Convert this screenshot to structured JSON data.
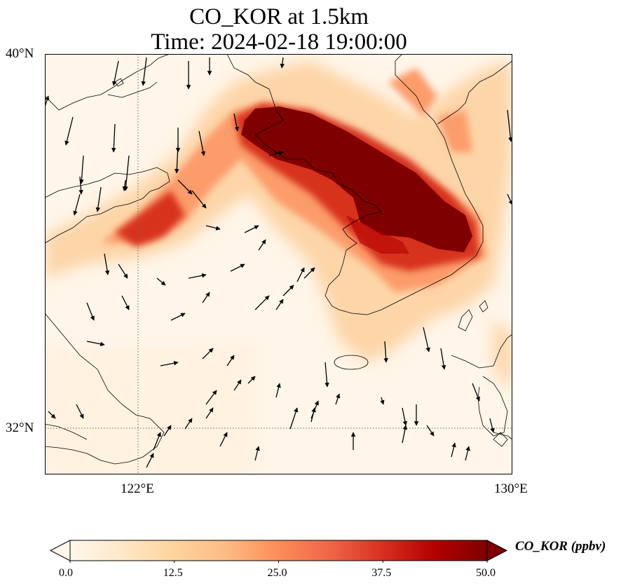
{
  "title": {
    "line1": "CO_KOR at 1.5km",
    "line2": "Time: 2024-02-18 19:00:00"
  },
  "map": {
    "variable": "CO_KOR",
    "height": "1.5km",
    "time": "2024-02-18 19:00:00",
    "projection": "PlateCarree",
    "extent": {
      "lon_min": 120.6,
      "lon_max": 130.0,
      "lat_min": 31.0,
      "lat_max": 40.0
    },
    "gridlines": {
      "style": "dotted",
      "lon": [
        122
      ],
      "lat": [
        32
      ]
    },
    "lat_labels": [
      "40°N",
      "32°N"
    ],
    "lon_labels": [
      "122°E",
      "130°E"
    ],
    "field_colormap": "OrRd",
    "wind_vectors": true
  },
  "colorbar": {
    "label": "CO_KOR (ppbv)",
    "min": 0.0,
    "max": 50.0,
    "extend": "both",
    "ticks": [
      "0.0",
      "12.5",
      "25.0",
      "37.5",
      "50.0"
    ],
    "colors": [
      "#fff7ec",
      "#fee8c8",
      "#fdd49e",
      "#fdbb84",
      "#fc8d59",
      "#ef6548",
      "#d7301f",
      "#b30000",
      "#7f0000"
    ]
  }
}
